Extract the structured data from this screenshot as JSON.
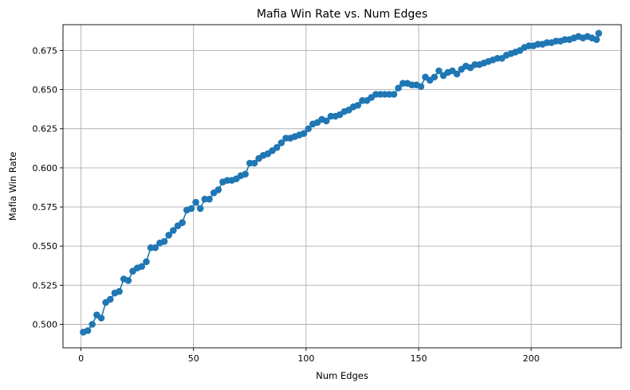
{
  "chart_data": {
    "type": "line",
    "title": "Mafia Win Rate vs. Num Edges",
    "xlabel": "Num Edges",
    "ylabel": "Mafia Win Rate",
    "xlim": [
      -8,
      240
    ],
    "ylim": [
      0.485,
      0.6915
    ],
    "xticks": [
      0,
      50,
      100,
      150,
      200
    ],
    "yticks": [
      0.5,
      0.525,
      0.55,
      0.575,
      0.6,
      0.625,
      0.65,
      0.675
    ],
    "ytick_labels": [
      "0.500",
      "0.525",
      "0.550",
      "0.575",
      "0.600",
      "0.625",
      "0.650",
      "0.675"
    ],
    "grid": true,
    "legend": false,
    "series": [
      {
        "name": "Mafia Win Rate",
        "color": "#1f77b4",
        "marker": "circle",
        "x": [
          1,
          3,
          5,
          7,
          9,
          11,
          13,
          15,
          17,
          19,
          21,
          23,
          25,
          27,
          29,
          31,
          33,
          35,
          37,
          39,
          41,
          43,
          45,
          47,
          49,
          51,
          53,
          55,
          57,
          59,
          61,
          63,
          65,
          67,
          69,
          71,
          73,
          75,
          77,
          79,
          81,
          83,
          85,
          87,
          89,
          91,
          93,
          95,
          97,
          99,
          101,
          103,
          105,
          107,
          109,
          111,
          113,
          115,
          117,
          119,
          121,
          123,
          125,
          127,
          129,
          131,
          133,
          135,
          137,
          139,
          141,
          143,
          145,
          147,
          149,
          151,
          153,
          155,
          157,
          159,
          161,
          163,
          165,
          167,
          169,
          171,
          173,
          175,
          177,
          179,
          181,
          183,
          185,
          187,
          189,
          191,
          193,
          195,
          197,
          199,
          201,
          203,
          205,
          207,
          209,
          211,
          213,
          215,
          217,
          219,
          221,
          223,
          225,
          227,
          229,
          230
        ],
        "y": [
          0.495,
          0.496,
          0.5,
          0.506,
          0.504,
          0.514,
          0.516,
          0.52,
          0.521,
          0.529,
          0.528,
          0.534,
          0.536,
          0.537,
          0.54,
          0.549,
          0.549,
          0.552,
          0.553,
          0.557,
          0.56,
          0.563,
          0.565,
          0.573,
          0.574,
          0.578,
          0.574,
          0.58,
          0.58,
          0.584,
          0.586,
          0.591,
          0.592,
          0.592,
          0.593,
          0.595,
          0.596,
          0.603,
          0.603,
          0.606,
          0.608,
          0.609,
          0.611,
          0.613,
          0.616,
          0.619,
          0.619,
          0.62,
          0.621,
          0.622,
          0.625,
          0.628,
          0.629,
          0.631,
          0.63,
          0.633,
          0.633,
          0.634,
          0.636,
          0.637,
          0.639,
          0.64,
          0.643,
          0.643,
          0.645,
          0.647,
          0.647,
          0.647,
          0.647,
          0.647,
          0.651,
          0.654,
          0.654,
          0.653,
          0.653,
          0.652,
          0.658,
          0.656,
          0.658,
          0.662,
          0.659,
          0.661,
          0.662,
          0.66,
          0.663,
          0.665,
          0.664,
          0.666,
          0.666,
          0.667,
          0.668,
          0.669,
          0.67,
          0.67,
          0.672,
          0.673,
          0.674,
          0.675,
          0.677,
          0.678,
          0.678,
          0.679,
          0.679,
          0.68,
          0.68,
          0.681,
          0.681,
          0.682,
          0.682,
          0.683,
          0.684,
          0.683,
          0.684,
          0.683,
          0.682,
          0.686
        ]
      }
    ]
  }
}
